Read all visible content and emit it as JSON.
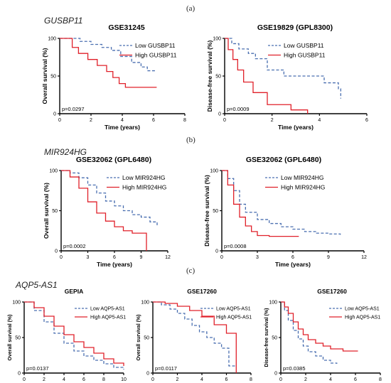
{
  "panels": [
    {
      "label": "(a)",
      "gene": "GUSBP11"
    },
    {
      "label": "(b)",
      "gene": "MIR924HG"
    },
    {
      "label": "(c)",
      "gene": "AQP5-AS1"
    }
  ],
  "colors": {
    "low": "#4a6fb0",
    "high": "#e0202a"
  },
  "chart_data": [
    {
      "type": "line",
      "title": "GSE31245",
      "xlabel": "Time (years)",
      "ylabel": "Overall survival (%)",
      "xlim": [
        0,
        8
      ],
      "ylim": [
        0,
        100
      ],
      "xticks": [
        0,
        2,
        4,
        6,
        8
      ],
      "yticks": [
        0,
        50,
        100
      ],
      "p_value": "p=0.0297",
      "series": [
        {
          "name": "Low GUSBP11",
          "style": "dashed",
          "x": [
            0,
            0.8,
            1.3,
            2.0,
            2.7,
            3.3,
            3.9,
            4.6,
            5.2,
            5.6,
            6.2
          ],
          "y": [
            100,
            100,
            96,
            92,
            88,
            84,
            76,
            68,
            62,
            57,
            57
          ]
        },
        {
          "name": "High GUSBP11",
          "style": "solid",
          "x": [
            0,
            0.8,
            1.2,
            1.8,
            2.4,
            3.0,
            3.4,
            3.8,
            4.2,
            4.8,
            6.2
          ],
          "y": [
            100,
            88,
            80,
            72,
            64,
            56,
            48,
            40,
            35,
            35,
            35
          ]
        }
      ]
    },
    {
      "type": "line",
      "title": "GSE19829 (GPL8300)",
      "xlabel": "Time (years)",
      "ylabel": "Disease-free survival (%)",
      "xlim": [
        0,
        6
      ],
      "ylim": [
        0,
        100
      ],
      "xticks": [
        0,
        2,
        4,
        6
      ],
      "yticks": [
        0,
        50,
        100
      ],
      "p_value": "p=0.0009",
      "series": [
        {
          "name": "Low GUSBP11",
          "style": "dashed",
          "x": [
            0,
            0.3,
            0.6,
            1.0,
            1.3,
            1.8,
            2.5,
            3.0,
            4.2,
            4.8,
            4.9
          ],
          "y": [
            100,
            93,
            86,
            80,
            73,
            58,
            50,
            50,
            41,
            33,
            20
          ]
        },
        {
          "name": "High GUSBP11",
          "style": "solid",
          "x": [
            0,
            0.15,
            0.35,
            0.55,
            0.8,
            1.2,
            1.8,
            2.8,
            3.5
          ],
          "y": [
            100,
            85,
            72,
            58,
            42,
            28,
            12,
            5,
            0
          ]
        }
      ]
    },
    {
      "type": "line",
      "title": "GSE32062 (GPL6480)",
      "xlabel": "Time (years)",
      "ylabel": "Overall survival (%)",
      "xlim": [
        0,
        12
      ],
      "ylim": [
        0,
        100
      ],
      "xticks": [
        0,
        3,
        6,
        9,
        12
      ],
      "yticks": [
        0,
        50,
        100
      ],
      "p_value": "p=0.0002",
      "series": [
        {
          "name": "Low MIR924HG",
          "style": "dashed",
          "x": [
            0,
            1,
            2,
            3,
            4,
            5,
            6,
            7,
            8,
            9,
            10,
            10.8
          ],
          "y": [
            100,
            97,
            91,
            82,
            72,
            62,
            56,
            50,
            45,
            42,
            36,
            30
          ]
        },
        {
          "name": "High MIR924HG",
          "style": "solid",
          "x": [
            0,
            1,
            2,
            3,
            4,
            5,
            6,
            7,
            8,
            9.5,
            9.6
          ],
          "y": [
            100,
            92,
            78,
            61,
            47,
            37,
            30,
            25,
            22,
            22,
            0
          ]
        }
      ]
    },
    {
      "type": "line",
      "title": "GSE32062 (GPL6480)",
      "xlabel": "Time (years)",
      "ylabel": "Disease-free survival (%)",
      "xlim": [
        0,
        12
      ],
      "ylim": [
        0,
        100
      ],
      "xticks": [
        0,
        3,
        6,
        9,
        12
      ],
      "yticks": [
        0,
        50,
        100
      ],
      "p_value": "p=0.0008",
      "series": [
        {
          "name": "Low MIR924HG",
          "style": "dashed",
          "x": [
            0,
            0.5,
            1,
            1.5,
            2,
            3,
            4,
            5,
            6,
            7,
            8,
            9,
            10
          ],
          "y": [
            100,
            90,
            75,
            58,
            48,
            39,
            34,
            30,
            27,
            24,
            22,
            21,
            20
          ]
        },
        {
          "name": "High MIR924HG",
          "style": "solid",
          "x": [
            0,
            0.5,
            1,
            1.5,
            2,
            2.5,
            3,
            4,
            5,
            6.5
          ],
          "y": [
            100,
            82,
            58,
            42,
            31,
            24,
            19,
            18,
            18,
            18
          ]
        }
      ]
    },
    {
      "type": "line",
      "title": "GEPIA",
      "xlabel": "Time (years)",
      "ylabel": "Overall survival (%)",
      "xlim": [
        0,
        10
      ],
      "ylim": [
        0,
        100
      ],
      "xticks": [
        0,
        2,
        4,
        6,
        8,
        10
      ],
      "yticks": [
        0,
        50,
        100
      ],
      "p_value": "p=0.0137",
      "series": [
        {
          "name": "Low AQP5-AS1",
          "style": "dashed",
          "x": [
            0,
            1,
            2,
            3,
            4,
            5,
            6,
            7,
            8,
            9,
            10
          ],
          "y": [
            100,
            88,
            72,
            56,
            42,
            31,
            24,
            18,
            13,
            8,
            5
          ]
        },
        {
          "name": "High AQP5-AS1",
          "style": "solid",
          "x": [
            0,
            1,
            2,
            3,
            4,
            5,
            6,
            7,
            8,
            9,
            10
          ],
          "y": [
            100,
            92,
            80,
            66,
            54,
            44,
            36,
            28,
            20,
            14,
            10
          ]
        }
      ]
    },
    {
      "type": "line",
      "title": "GSE17260",
      "xlabel": "Time (years)",
      "ylabel": "Overall survival (%)",
      "xlim": [
        0,
        8
      ],
      "ylim": [
        0,
        100
      ],
      "xticks": [
        0,
        2,
        4,
        6,
        8
      ],
      "yticks": [
        0,
        50,
        100
      ],
      "p_value": "p=0.0117",
      "series": [
        {
          "name": "Low AQP5-AS1",
          "style": "dashed",
          "x": [
            0,
            0.7,
            1.4,
            2,
            2.6,
            3.2,
            3.8,
            4.4,
            5,
            5.6,
            6.2,
            6.7
          ],
          "y": [
            100,
            96,
            90,
            84,
            76,
            67,
            58,
            50,
            42,
            35,
            10,
            10
          ]
        },
        {
          "name": "High AQP5-AS1",
          "style": "solid",
          "x": [
            0,
            1,
            2,
            3,
            4,
            5,
            6,
            6.7,
            6.8
          ],
          "y": [
            100,
            98,
            94,
            88,
            80,
            68,
            56,
            56,
            0
          ]
        }
      ]
    },
    {
      "type": "line",
      "title": "GSE17260",
      "xlabel": "Time (years)",
      "ylabel": "Disease-free survival (%)",
      "xlim": [
        0,
        8
      ],
      "ylim": [
        0,
        100
      ],
      "xticks": [
        0,
        2,
        4,
        6,
        8
      ],
      "yticks": [
        0,
        50,
        100
      ],
      "p_value": "p=0.0385",
      "series": [
        {
          "name": "Low AQP5-AS1",
          "style": "dashed",
          "x": [
            0,
            0.3,
            0.6,
            1,
            1.4,
            1.8,
            2.2,
            2.8,
            3.4,
            4,
            4.5
          ],
          "y": [
            100,
            88,
            74,
            60,
            48,
            38,
            30,
            24,
            18,
            14,
            13
          ]
        },
        {
          "name": "High AQP5-AS1",
          "style": "solid",
          "x": [
            0,
            0.3,
            0.6,
            1,
            1.4,
            1.8,
            2.2,
            2.8,
            3.4,
            4,
            5,
            6.2
          ],
          "y": [
            100,
            93,
            84,
            72,
            62,
            54,
            47,
            42,
            38,
            34,
            31,
            31
          ]
        }
      ]
    }
  ]
}
